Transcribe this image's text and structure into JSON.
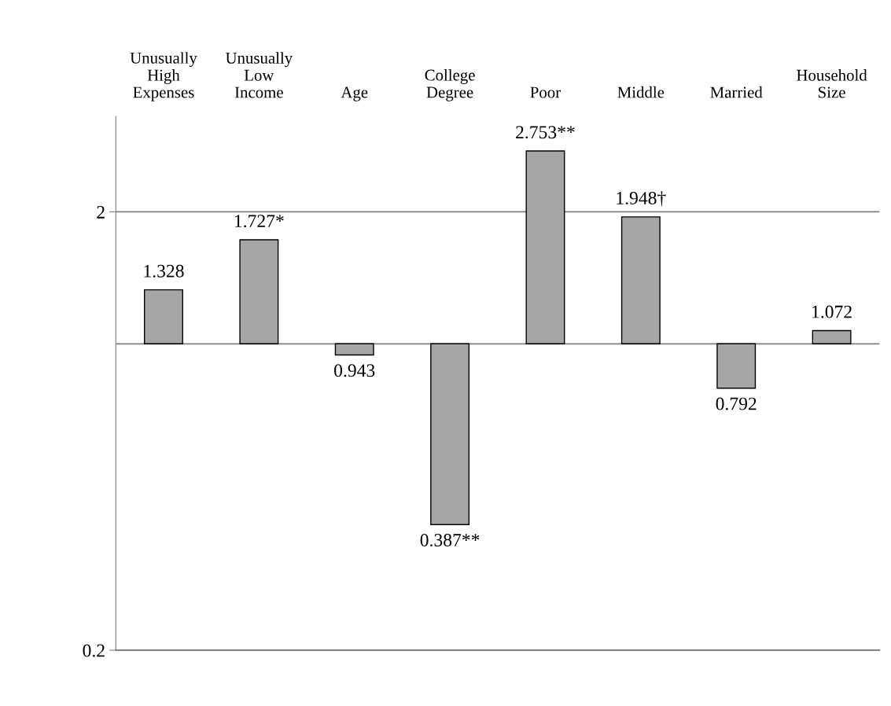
{
  "chart_data": {
    "type": "bar",
    "categories": [
      "Unusually\nHigh\nExpenses",
      "Unusually\nLow\nIncome",
      "Age",
      "College\nDegree",
      "Poor",
      "Middle",
      "Married",
      "Household\nSize"
    ],
    "base": [
      1,
      1,
      1,
      1,
      1,
      1,
      1,
      1
    ],
    "values": [
      0.328,
      0.727,
      -0.057,
      -0.613,
      1.753,
      0.948,
      -0.208,
      0.072
    ],
    "value_labels": [
      "1.328",
      "1.727*",
      "0.943",
      "0.387**",
      "2.753**",
      "1.948†",
      "0.792",
      "1.072"
    ],
    "color": "#a6a6a6",
    "log": "y",
    "ylim": [
      0.2,
      3.3
    ],
    "yticks": [
      0.2,
      2
    ],
    "grid": "y",
    "ref_lines": [
      {
        "axis": "y",
        "value": 1,
        "color": "#808080"
      }
    ]
  }
}
